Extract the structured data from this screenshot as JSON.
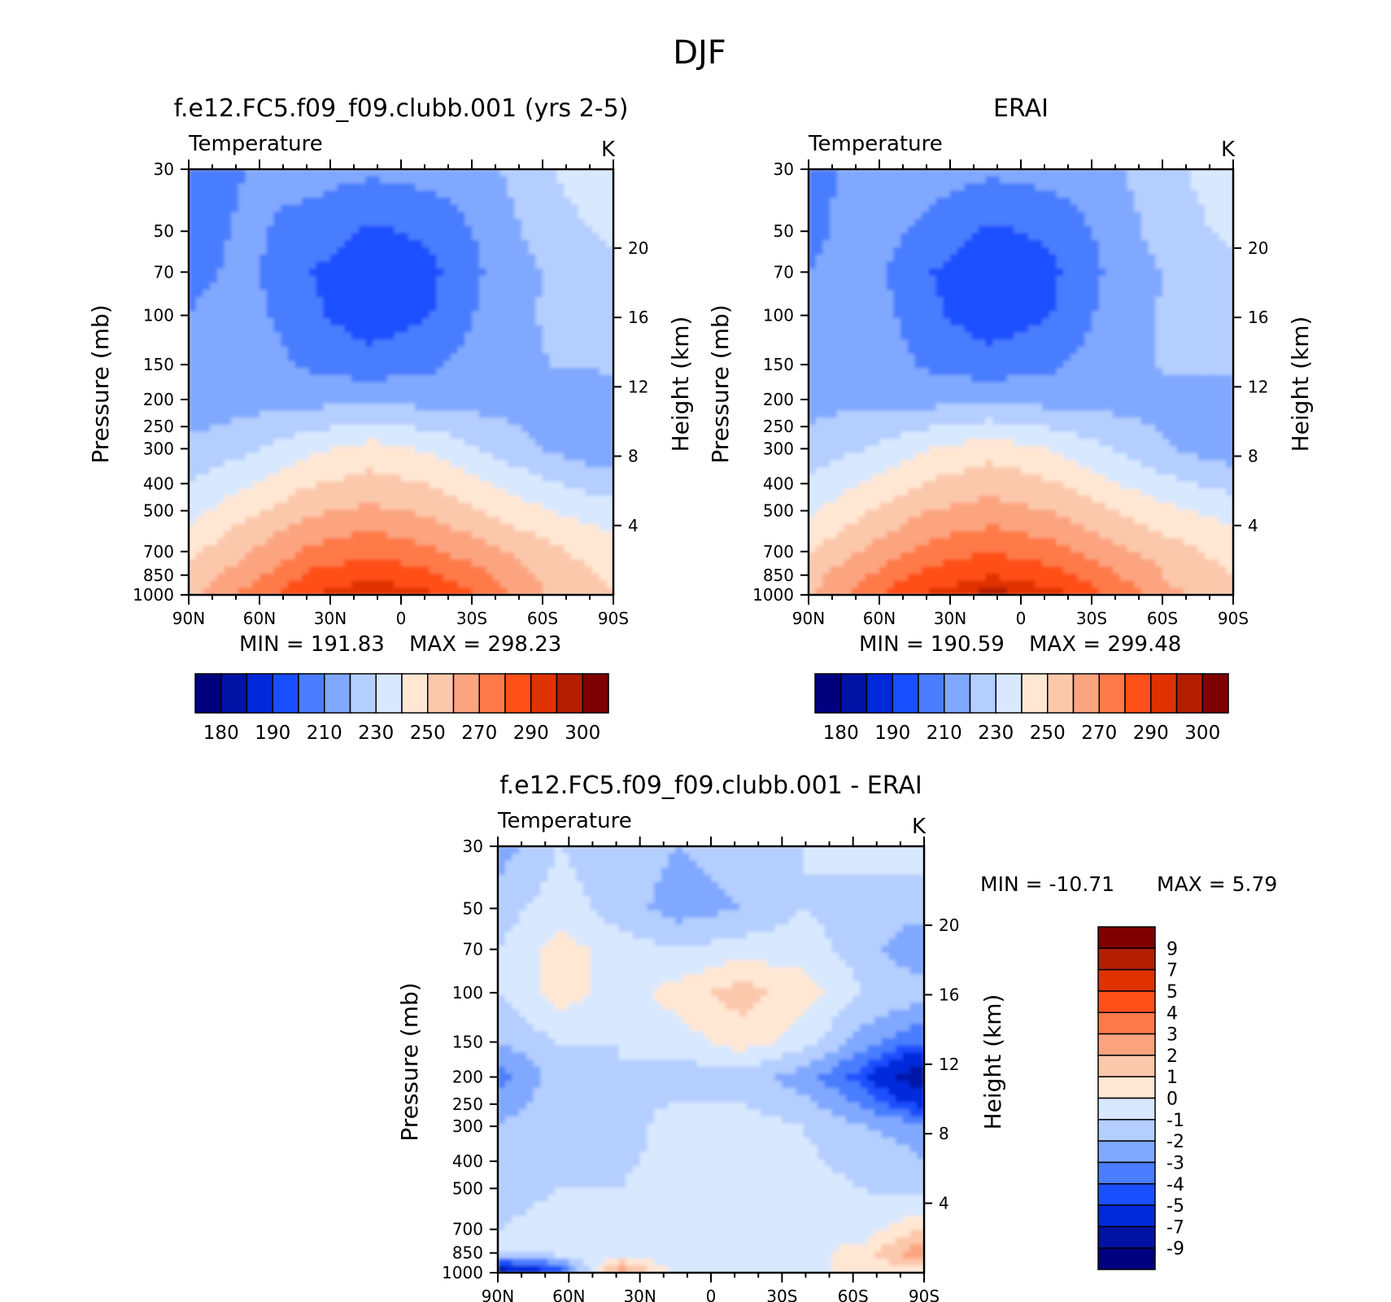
{
  "figure_title": "DJF",
  "colors": {
    "t_levels": [
      "#00007f",
      "#0012a4",
      "#0029db",
      "#1a4fff",
      "#4a7dff",
      "#80a8ff",
      "#b4ceff",
      "#d8e8ff",
      "#ffe7d4",
      "#fcc8ac",
      "#fca480",
      "#ff7a4a",
      "#ff5019",
      "#e03200",
      "#b41e00",
      "#7f0000"
    ],
    "d_levels": [
      "#00007f",
      "#0012a4",
      "#0029db",
      "#1a4fff",
      "#4a7dff",
      "#80a8ff",
      "#b4ceff",
      "#d8e8ff",
      "#ffe7d4",
      "#fcc8ac",
      "#fca480",
      "#ff7a4a",
      "#ff5019",
      "#e03200",
      "#b41e00",
      "#7f0000"
    ]
  },
  "panels": {
    "model": {
      "title": "f.e12.FC5.f09_f09.clubb.001 (yrs 2-5)",
      "left_label": "Temperature",
      "unit": "K",
      "ylabel": "Pressure (mb)",
      "y2label": "Height (km)",
      "min_text": "MIN = 191.83",
      "max_text": "MAX = 298.23"
    },
    "obs": {
      "title": "ERAI",
      "left_label": "Temperature",
      "unit": "K",
      "ylabel": "Pressure (mb)",
      "y2label": "Height (km)",
      "min_text": "MIN = 190.59",
      "max_text": "MAX = 299.48"
    },
    "diff": {
      "title": "f.e12.FC5.f09_f09.clubb.001 - ERAI",
      "left_label": "Temperature",
      "unit": "K",
      "ylabel": "Pressure (mb)",
      "y2label": "Height (km)",
      "min_text": "MIN = -10.71",
      "max_text": "MAX =     5.79"
    }
  },
  "axes": {
    "pressure_ticks": [
      "30",
      "50",
      "70",
      "100",
      "150",
      "200",
      "250",
      "300",
      "400",
      "500",
      "700",
      "850",
      "1000"
    ],
    "height_ticks": [
      "20",
      "16",
      "12",
      "8",
      "4"
    ],
    "lat_ticks": [
      "90N",
      "60N",
      "30N",
      "0",
      "30S",
      "60S",
      "90S"
    ]
  },
  "colorbars": {
    "temperature_labels": [
      "180",
      "190",
      "210",
      "230",
      "250",
      "270",
      "290",
      "300"
    ],
    "difference_labels": [
      "9",
      "7",
      "5",
      "4",
      "3",
      "2",
      "1",
      "0",
      "-1",
      "-2",
      "-3",
      "-4",
      "-5",
      "-7",
      "-9"
    ]
  },
  "chart_data": [
    {
      "type": "heatmap",
      "title": "f.e12.FC5.f09_f09.clubb.001 (yrs 2-5)",
      "ylabel": "Pressure (mb)",
      "y2label": "Height (km)",
      "x": [
        "90N",
        "60N",
        "30N",
        "0",
        "30S",
        "60S",
        "90S"
      ],
      "y_pressure": [
        30,
        50,
        70,
        100,
        150,
        200,
        300,
        500,
        700,
        850,
        1000
      ],
      "values": [
        [
          206,
          210,
          214,
          212,
          214,
          218,
          230,
          238
        ],
        [
          206,
          212,
          206,
          198,
          202,
          214,
          226,
          232
        ],
        [
          208,
          212,
          200,
          193,
          198,
          212,
          222,
          228
        ],
        [
          210,
          214,
          202,
          194,
          200,
          214,
          222,
          228
        ],
        [
          212,
          216,
          208,
          204,
          208,
          216,
          220,
          222
        ],
        [
          214,
          216,
          216,
          218,
          216,
          216,
          214,
          214
        ],
        [
          222,
          228,
          238,
          244,
          238,
          228,
          218,
          212
        ],
        [
          236,
          248,
          258,
          262,
          258,
          248,
          240,
          234
        ],
        [
          248,
          260,
          272,
          278,
          272,
          262,
          252,
          244
        ],
        [
          254,
          266,
          282,
          288,
          282,
          270,
          256,
          248
        ],
        [
          256,
          274,
          290,
          296,
          292,
          276,
          258,
          250
        ]
      ],
      "min": 191.83,
      "max": 298.23
    },
    {
      "type": "heatmap",
      "title": "ERAI",
      "ylabel": "Pressure (mb)",
      "y2label": "Height (km)",
      "x": [
        "90N",
        "60N",
        "30N",
        "0",
        "30S",
        "60S",
        "90S"
      ],
      "y_pressure": [
        30,
        50,
        70,
        100,
        150,
        200,
        300,
        500,
        700,
        850,
        1000
      ],
      "values": [
        [
          208,
          212,
          214,
          212,
          214,
          218,
          228,
          236
        ],
        [
          208,
          214,
          208,
          198,
          202,
          214,
          226,
          232
        ],
        [
          210,
          214,
          200,
          193,
          198,
          212,
          222,
          228
        ],
        [
          212,
          216,
          202,
          194,
          200,
          214,
          222,
          228
        ],
        [
          214,
          218,
          208,
          204,
          208,
          216,
          222,
          222
        ],
        [
          216,
          218,
          216,
          218,
          216,
          216,
          216,
          216
        ],
        [
          224,
          230,
          240,
          246,
          240,
          230,
          220,
          214
        ],
        [
          238,
          250,
          260,
          264,
          260,
          250,
          242,
          236
        ],
        [
          250,
          262,
          274,
          280,
          274,
          264,
          254,
          246
        ],
        [
          256,
          270,
          284,
          290,
          284,
          272,
          258,
          250
        ],
        [
          258,
          278,
          292,
          297,
          294,
          278,
          262,
          252
        ]
      ],
      "min": 190.59,
      "max": 299.48
    },
    {
      "type": "heatmap",
      "title": "f.e12.FC5.f09_f09.clubb.001 - ERAI",
      "ylabel": "Pressure (mb)",
      "y2label": "Height (km)",
      "x": [
        "90N",
        "60N",
        "30N",
        "0",
        "30S",
        "60S",
        "90S"
      ],
      "y_pressure": [
        30,
        50,
        70,
        100,
        150,
        200,
        300,
        500,
        700,
        850,
        1000
      ],
      "values": [
        [
          -2.5,
          -1.0,
          -1.5,
          -2.0,
          -1.5,
          -1.0,
          -0.5,
          -0.5
        ],
        [
          -1.5,
          -0.5,
          -1.5,
          -2.5,
          -2.0,
          -1.0,
          -1.5,
          -1.5
        ],
        [
          -1.0,
          0.5,
          -0.5,
          -1.0,
          -0.5,
          -0.5,
          -1.5,
          -3.0
        ],
        [
          -1.0,
          0.5,
          -0.5,
          0.5,
          1.5,
          0.5,
          -1.0,
          -1.5
        ],
        [
          -2.0,
          -1.0,
          -1.0,
          -0.5,
          0.5,
          -0.5,
          -2.5,
          -4.0
        ],
        [
          -3.5,
          -1.5,
          -1.0,
          -1.5,
          -1.5,
          -2.5,
          -4.5,
          -9.0
        ],
        [
          -2.0,
          -1.0,
          -1.5,
          -0.5,
          -0.5,
          -1.0,
          -2.0,
          -2.5
        ],
        [
          -1.5,
          -1.0,
          -1.0,
          -0.5,
          -0.5,
          -0.5,
          -1.0,
          -1.5
        ],
        [
          -1.0,
          -0.5,
          -0.5,
          -0.5,
          -0.5,
          -0.5,
          -0.5,
          1.0
        ],
        [
          -0.5,
          -0.5,
          -0.5,
          -1.0,
          -0.5,
          -0.5,
          0.5,
          3.0
        ],
        [
          -9.0,
          -5.0,
          3.0,
          -0.5,
          -1.0,
          -0.5,
          0.5,
          0.5
        ]
      ],
      "min": -10.71,
      "max": 5.79
    }
  ]
}
